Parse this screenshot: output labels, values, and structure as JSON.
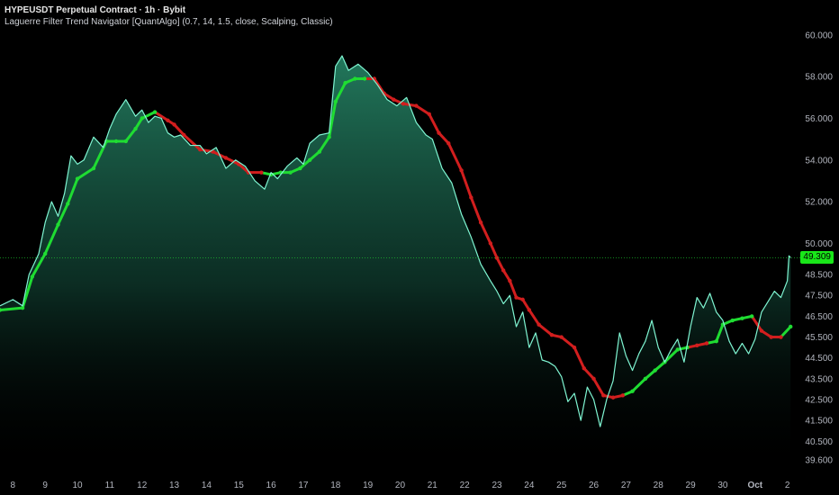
{
  "header": {
    "title": "HYPEUSDT Perpetual Contract · 1h · Bybit",
    "indicator": "Laguerre Filter Trend Navigator [QuantAlgo] (0.7, 14, 1.5, close, Scalping, Classic)"
  },
  "colors": {
    "background": "#000000",
    "price_line": "#7ff5d2",
    "bull": "#1fdc32",
    "bear": "#d21e1e",
    "last_price_label": "#19e619",
    "axis_text": "#b2b5be"
  },
  "price_label": "49.309",
  "chart_data": {
    "type": "line",
    "title": "",
    "xlabel": "",
    "ylabel": "",
    "ylim": [
      39.0,
      60.6
    ],
    "y_ticks": [
      "60.000",
      "58.000",
      "56.000",
      "54.000",
      "52.000",
      "50.000",
      "48.500",
      "47.500",
      "46.500",
      "45.500",
      "44.500",
      "43.500",
      "42.500",
      "41.500",
      "40.500",
      "39.600"
    ],
    "y_tick_values": [
      60.0,
      58.0,
      56.0,
      54.0,
      52.0,
      50.0,
      48.5,
      47.5,
      46.5,
      45.5,
      44.5,
      43.5,
      42.5,
      41.5,
      40.5,
      39.6
    ],
    "x_ticks": [
      "8",
      "9",
      "10",
      "11",
      "12",
      "13",
      "14",
      "15",
      "16",
      "17",
      "18",
      "19",
      "20",
      "21",
      "22",
      "23",
      "24",
      "25",
      "26",
      "27",
      "28",
      "29",
      "30",
      "Oct",
      "2"
    ],
    "x_tick_days": [
      8,
      9,
      10,
      11,
      12,
      13,
      14,
      15,
      16,
      17,
      18,
      19,
      20,
      21,
      22,
      23,
      24,
      25,
      26,
      27,
      28,
      29,
      30,
      31,
      32
    ],
    "x_domain_days": [
      7.6,
      32.15
    ],
    "last_price": 49.309,
    "series": [
      {
        "x": [
          7.6,
          8.0,
          8.3,
          8.5,
          8.8,
          9.0,
          9.2,
          9.4,
          9.6,
          9.8,
          10.0,
          10.2,
          10.5,
          10.8,
          11.0,
          11.2,
          11.5,
          11.8,
          12.0,
          12.2,
          12.4,
          12.6,
          12.8,
          13.0,
          13.2,
          13.5,
          13.8,
          14.0,
          14.3,
          14.6,
          14.9,
          15.2,
          15.5,
          15.8,
          16.0,
          16.2,
          16.5,
          16.8,
          17.0,
          17.2,
          17.5,
          17.8,
          18.0,
          18.2,
          18.4,
          18.7,
          19.0,
          19.3,
          19.6,
          19.9,
          20.2,
          20.5,
          20.8,
          21.0,
          21.3,
          21.6,
          21.9,
          22.2,
          22.5,
          22.8,
          23.0,
          23.2,
          23.4,
          23.6,
          23.8,
          24.0,
          24.2,
          24.4,
          24.6,
          24.8,
          25.0,
          25.2,
          25.4,
          25.6,
          25.8,
          26.0,
          26.2,
          26.4,
          26.6,
          26.8,
          27.0,
          27.2,
          27.4,
          27.6,
          27.8,
          28.0,
          28.2,
          28.4,
          28.6,
          28.8,
          29.0,
          29.2,
          29.4,
          29.6,
          29.8,
          30.0,
          30.2,
          30.4,
          30.6,
          30.8,
          31.0,
          31.2,
          31.4,
          31.6,
          31.8,
          32.0,
          32.05,
          32.1
        ],
        "values": [
          47.0,
          47.3,
          47.0,
          48.5,
          49.5,
          51.0,
          52.0,
          51.3,
          52.4,
          54.2,
          53.8,
          54.0,
          55.1,
          54.6,
          55.5,
          56.2,
          56.9,
          56.1,
          56.4,
          55.8,
          56.1,
          56.0,
          55.3,
          55.1,
          55.2,
          54.7,
          54.7,
          54.3,
          54.6,
          53.6,
          54.0,
          53.7,
          53.0,
          52.6,
          53.4,
          53.1,
          53.7,
          54.1,
          53.8,
          54.8,
          55.2,
          55.3,
          58.5,
          59.0,
          58.3,
          58.6,
          58.2,
          57.6,
          56.9,
          56.6,
          57.0,
          55.8,
          55.2,
          55.0,
          53.6,
          52.9,
          51.4,
          50.3,
          49.0,
          48.2,
          47.7,
          47.1,
          47.5,
          46.0,
          46.7,
          45.0,
          45.7,
          44.4,
          44.3,
          44.1,
          43.6,
          42.4,
          42.8,
          41.5,
          43.1,
          42.5,
          41.2,
          42.5,
          43.4,
          45.7,
          44.6,
          43.9,
          44.7,
          45.3,
          46.3,
          45.0,
          44.3,
          44.9,
          45.4,
          44.3,
          46.0,
          47.4,
          46.9,
          47.6,
          46.7,
          46.3,
          45.3,
          44.7,
          45.2,
          44.7,
          45.4,
          46.7,
          47.2,
          47.7,
          47.4,
          48.2,
          49.4,
          49.309
        ]
      },
      {
        "x": [
          7.6,
          8.3,
          8.6,
          9.0,
          9.4,
          9.7,
          10.0,
          10.5,
          10.9,
          11.2,
          11.5,
          11.8,
          12.0,
          12.4,
          12.8,
          13.0,
          13.3,
          13.8,
          14.2,
          14.6,
          15.0,
          15.3,
          15.7,
          16.0,
          16.3,
          16.6,
          16.9,
          17.2,
          17.5,
          17.8,
          18.0,
          18.3,
          18.6,
          18.9,
          19.2,
          19.5,
          19.8,
          20.1,
          20.5,
          20.9,
          21.2,
          21.5,
          21.9,
          22.2,
          22.5,
          22.8,
          23.0,
          23.2,
          23.4,
          23.6,
          23.8,
          24.0,
          24.3,
          24.7,
          25.0,
          25.4,
          25.7,
          26.0,
          26.3,
          26.6,
          26.9,
          27.2,
          27.6,
          27.9,
          28.2,
          28.6,
          28.9,
          29.2,
          29.5,
          29.8,
          30.0,
          30.3,
          30.6,
          30.9,
          31.2,
          31.5,
          31.8,
          32.1
        ],
        "values": [
          46.8,
          46.9,
          48.4,
          49.5,
          50.9,
          51.9,
          53.1,
          53.6,
          54.9,
          54.9,
          54.9,
          55.5,
          56.0,
          56.3,
          55.9,
          55.7,
          55.2,
          54.5,
          54.4,
          54.1,
          53.8,
          53.4,
          53.4,
          53.3,
          53.4,
          53.4,
          53.6,
          54.0,
          54.4,
          55.1,
          56.8,
          57.7,
          57.9,
          57.9,
          57.9,
          57.2,
          56.9,
          56.7,
          56.6,
          56.2,
          55.3,
          54.8,
          53.5,
          52.2,
          51.0,
          50.0,
          49.3,
          48.7,
          48.2,
          47.4,
          47.3,
          46.8,
          46.1,
          45.6,
          45.5,
          45.0,
          44.0,
          43.5,
          42.7,
          42.6,
          42.7,
          42.9,
          43.5,
          43.9,
          44.3,
          44.9,
          45.0,
          45.1,
          45.2,
          45.3,
          46.1,
          46.3,
          46.4,
          46.5,
          45.8,
          45.5,
          45.5,
          46.0
        ],
        "trend": [
          "up",
          "up",
          "up",
          "up",
          "up",
          "up",
          "up",
          "up",
          "up",
          "up",
          "up",
          "up",
          "up",
          "up",
          "down",
          "down",
          "down",
          "down",
          "down",
          "down",
          "down",
          "down",
          "down",
          "up",
          "up",
          "up",
          "up",
          "up",
          "up",
          "up",
          "up",
          "up",
          "up",
          "up",
          "down",
          "down",
          "down",
          "down",
          "down",
          "down",
          "down",
          "down",
          "down",
          "down",
          "down",
          "down",
          "down",
          "down",
          "down",
          "down",
          "down",
          "down",
          "down",
          "down",
          "down",
          "down",
          "down",
          "down",
          "down",
          "down",
          "down",
          "up",
          "up",
          "up",
          "up",
          "up",
          "up",
          "down",
          "down",
          "up",
          "up",
          "up",
          "up",
          "up",
          "down",
          "down",
          "down",
          "up"
        ]
      }
    ]
  }
}
